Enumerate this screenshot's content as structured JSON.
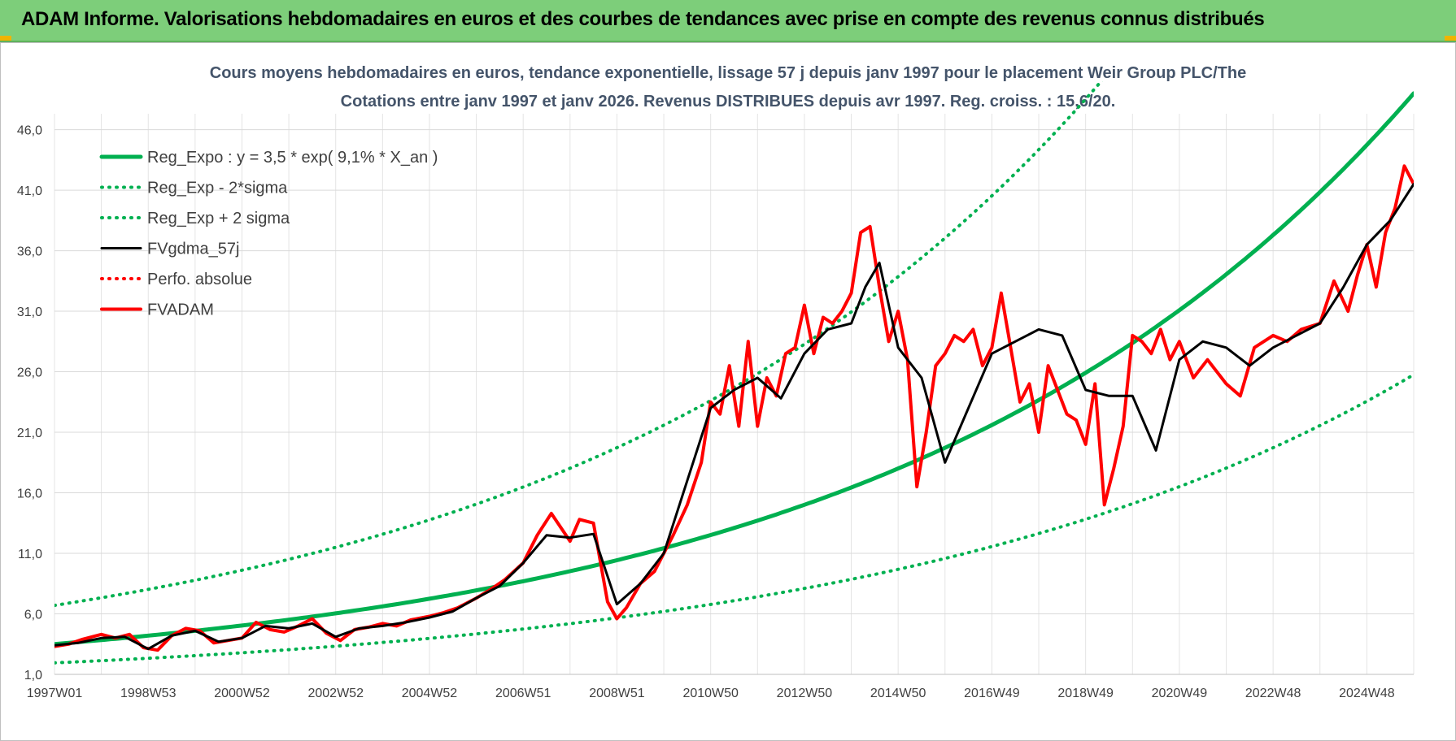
{
  "banner": {
    "title": "ADAM Informe. Valorisations hebdomadaires en euros et des courbes de tendances avec prise en compte des revenus connus distribués",
    "color": "#7dce7a"
  },
  "chart_data": {
    "type": "line",
    "title_line1": "Cours moyens hebdomadaires en euros, tendance exponentielle, lissage 57 j depuis janv 1997 pour le placement Weir Group PLC/The",
    "title_line2": "Cotations entre janv 1997 et janv 2026. Revenus DISTRIBUES depuis avr 1997.  Reg. croiss. : 15,6/20.",
    "xlabel": "",
    "ylabel": "",
    "x_range": [
      1997.0,
      2026.0
    ],
    "ylim": [
      1.0,
      50.0
    ],
    "y_ticks": [
      "1,0",
      "6,0",
      "11,0",
      "16,0",
      "21,0",
      "26,0",
      "31,0",
      "36,0",
      "41,0",
      "46,0"
    ],
    "y_tick_values": [
      1,
      6,
      11,
      16,
      21,
      26,
      31,
      36,
      41,
      46
    ],
    "x_ticks": [
      "1997W01",
      "1998W53",
      "2000W52",
      "2002W52",
      "2004W52",
      "2006W51",
      "2008W51",
      "2010W50",
      "2012W50",
      "2014W50",
      "2016W49",
      "2018W49",
      "2020W49",
      "2022W48",
      "2024W48"
    ],
    "x_tick_values": [
      1997.0,
      1999.0,
      2001.0,
      2003.0,
      2005.0,
      2007.0,
      2009.0,
      2011.0,
      2013.0,
      2015.0,
      2017.0,
      2019.0,
      2021.0,
      2023.0,
      2025.0
    ],
    "grid": true,
    "legend_position": "top-left",
    "series": [
      {
        "name": "Reg_Expo : y = 3,5 * exp( 9,1% *  X_an )",
        "color": "#00b050",
        "style": "solid",
        "x": [
          1997.0,
          2026.0
        ],
        "y_formula": "3.5*exp(0.091*(x-1997))"
      },
      {
        "name": "Reg_Exp - 2*sigma",
        "color": "#00b050",
        "style": "dotted",
        "x": [
          1997.0,
          2026.0
        ],
        "y_formula": "1.95*exp(0.089*(x-1997))"
      },
      {
        "name": "Reg_Exp + 2 sigma",
        "color": "#00b050",
        "style": "dotted",
        "x": [
          1997.0,
          2026.0
        ],
        "y_formula": "6.7*exp(0.09*(x-1997))"
      },
      {
        "name": "FVgdma_57j",
        "color": "#000000",
        "style": "solid",
        "x": [
          1997.0,
          1997.5,
          1998.0,
          1998.5,
          1999.0,
          1999.5,
          2000.0,
          2000.5,
          2001.0,
          2001.5,
          2002.0,
          2002.5,
          2003.0,
          2003.5,
          2004.0,
          2004.5,
          2005.0,
          2005.5,
          2006.0,
          2006.5,
          2007.0,
          2007.5,
          2008.0,
          2008.5,
          2009.0,
          2009.5,
          2010.0,
          2010.5,
          2011.0,
          2011.5,
          2012.0,
          2012.5,
          2013.0,
          2013.5,
          2014.0,
          2014.3,
          2014.6,
          2015.0,
          2015.5,
          2016.0,
          2016.5,
          2017.0,
          2017.5,
          2018.0,
          2018.5,
          2019.0,
          2019.5,
          2020.0,
          2020.5,
          2021.0,
          2021.5,
          2022.0,
          2022.5,
          2023.0,
          2023.5,
          2024.0,
          2024.5,
          2025.0,
          2025.5,
          2026.0
        ],
        "y": [
          3.4,
          3.6,
          4.0,
          4.1,
          3.1,
          4.2,
          4.6,
          3.7,
          4.0,
          5.0,
          4.8,
          5.2,
          4.1,
          4.8,
          5.0,
          5.3,
          5.7,
          6.2,
          7.3,
          8.3,
          10.2,
          12.5,
          12.3,
          12.6,
          6.8,
          8.5,
          11.0,
          17.0,
          23.0,
          24.5,
          25.5,
          23.8,
          27.5,
          29.5,
          30.0,
          33.0,
          35.0,
          28.0,
          25.5,
          18.5,
          23.0,
          27.5,
          28.5,
          29.5,
          29.0,
          24.5,
          24.0,
          24.0,
          19.5,
          27.0,
          28.5,
          28.0,
          26.5,
          28.0,
          29.0,
          30.0,
          33.0,
          36.5,
          38.5,
          41.5
        ]
      },
      {
        "name": "Perfo. absolue",
        "color": "#ff0000",
        "style": "dotted",
        "x": [
          1997.0,
          2026.0
        ],
        "y": [
          3.4,
          41.5
        ]
      },
      {
        "name": "FVADAM",
        "color": "#ff0000",
        "style": "solid",
        "x": [
          1997.0,
          1997.3,
          1997.6,
          1998.0,
          1998.3,
          1998.6,
          1998.9,
          1999.2,
          1999.5,
          1999.8,
          2000.1,
          2000.4,
          2000.7,
          2001.0,
          2001.3,
          2001.6,
          2001.9,
          2002.2,
          2002.5,
          2002.8,
          2003.1,
          2003.4,
          2003.7,
          2004.0,
          2004.3,
          2004.6,
          2005.0,
          2005.3,
          2005.6,
          2006.0,
          2006.3,
          2006.6,
          2007.0,
          2007.3,
          2007.6,
          2008.0,
          2008.2,
          2008.5,
          2008.8,
          2009.0,
          2009.2,
          2009.5,
          2009.8,
          2010.0,
          2010.2,
          2010.5,
          2010.8,
          2011.0,
          2011.2,
          2011.4,
          2011.6,
          2011.8,
          2012.0,
          2012.2,
          2012.4,
          2012.6,
          2012.8,
          2013.0,
          2013.2,
          2013.4,
          2013.6,
          2013.8,
          2014.0,
          2014.2,
          2014.4,
          2014.6,
          2014.8,
          2015.0,
          2015.2,
          2015.4,
          2015.6,
          2015.8,
          2016.0,
          2016.2,
          2016.4,
          2016.6,
          2016.8,
          2017.0,
          2017.2,
          2017.4,
          2017.6,
          2017.8,
          2018.0,
          2018.2,
          2018.4,
          2018.6,
          2018.8,
          2019.0,
          2019.2,
          2019.4,
          2019.6,
          2019.8,
          2020.0,
          2020.2,
          2020.4,
          2020.6,
          2020.8,
          2021.0,
          2021.3,
          2021.6,
          2022.0,
          2022.3,
          2022.6,
          2023.0,
          2023.3,
          2023.6,
          2024.0,
          2024.3,
          2024.6,
          2024.8,
          2025.0,
          2025.2,
          2025.4,
          2025.6,
          2025.8,
          2026.0
        ],
        "y": [
          3.3,
          3.5,
          3.9,
          4.3,
          4.0,
          4.3,
          3.2,
          3.0,
          4.2,
          4.8,
          4.6,
          3.6,
          3.8,
          4.0,
          5.3,
          4.7,
          4.5,
          5.0,
          5.6,
          4.4,
          3.8,
          4.7,
          4.9,
          5.2,
          5.0,
          5.5,
          5.8,
          6.1,
          6.5,
          7.3,
          8.0,
          8.8,
          10.2,
          12.5,
          14.3,
          12.0,
          13.8,
          13.5,
          7.0,
          5.6,
          6.5,
          8.5,
          9.5,
          11.0,
          12.5,
          15.0,
          18.5,
          23.5,
          22.5,
          26.5,
          21.5,
          28.5,
          21.5,
          25.5,
          24.0,
          27.5,
          28.0,
          31.5,
          27.5,
          30.5,
          30.0,
          31.0,
          32.5,
          37.5,
          38.0,
          33.0,
          28.5,
          31.0,
          27.0,
          16.5,
          21.0,
          26.5,
          27.5,
          29.0,
          28.5,
          29.5,
          26.5,
          28.0,
          32.5,
          28.0,
          23.5,
          25.0,
          21.0,
          26.5,
          24.5,
          22.5,
          22.0,
          20.0,
          25.0,
          15.0,
          18.0,
          21.5,
          29.0,
          28.5,
          27.5,
          29.5,
          27.0,
          28.5,
          25.5,
          27.0,
          25.0,
          24.0,
          28.0,
          29.0,
          28.5,
          29.5,
          30.0,
          33.5,
          31.0,
          34.0,
          36.5,
          33.0,
          37.5,
          39.5,
          43.0,
          41.5
        ]
      }
    ]
  }
}
